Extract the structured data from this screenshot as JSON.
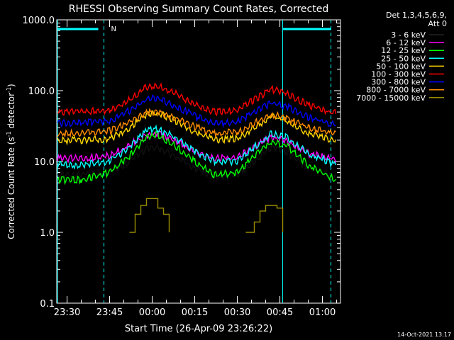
{
  "chart_data": {
    "type": "line",
    "title": "RHESSI Observing Summary Count Rates, Corrected",
    "xlabel": "Start Time (26-Apr-09 23:26:22)",
    "ylabel_main": "Corrected Count Rate (s",
    "ylabel_sup1": "-1",
    "ylabel_mid": " detector",
    "ylabel_sup2": "-1",
    "ylabel_end": ")",
    "yscale": "log",
    "ylim": [
      0.1,
      1000
    ],
    "xlim": [
      "23:26:22",
      "01:06:22"
    ],
    "grid": false,
    "y_ticks": [
      {
        "value": 1000,
        "label": "1000.0"
      },
      {
        "value": 100,
        "label": "100.0"
      },
      {
        "value": 10,
        "label": "10.0"
      },
      {
        "value": 1,
        "label": "1.0"
      },
      {
        "value": 0.1,
        "label": "0.1"
      }
    ],
    "x_ticks": [
      {
        "time": "23:30",
        "label": "23:30"
      },
      {
        "time": "23:45",
        "label": "23:45"
      },
      {
        "time": "00:00",
        "label": "00:00"
      },
      {
        "time": "00:15",
        "label": "00:15"
      },
      {
        "time": "00:30",
        "label": "00:30"
      },
      {
        "time": "00:45",
        "label": "00:45"
      },
      {
        "time": "01:00",
        "label": "01:00"
      }
    ],
    "legend": {
      "position": "top-right",
      "header_line1": "Det 1,3,4,5,6,9,",
      "header_line2": "Att 0"
    },
    "series": [
      {
        "name": "3 - 6 keV",
        "color": "#000000",
        "points": [
          [
            "23:26",
            6.5
          ],
          [
            "23:35",
            6.5
          ],
          [
            "23:45",
            7
          ],
          [
            "23:52",
            10
          ],
          [
            "23:58",
            15
          ],
          [
            "00:02",
            15.5
          ],
          [
            "00:08",
            12
          ],
          [
            "00:15",
            8
          ],
          [
            "00:22",
            6
          ],
          [
            "00:30",
            6.5
          ],
          [
            "00:36",
            10
          ],
          [
            "00:42",
            16
          ],
          [
            "00:47",
            14
          ],
          [
            "00:55",
            8
          ],
          [
            "01:05",
            6
          ]
        ]
      },
      {
        "name": "6 - 12 keV",
        "color": "#ff00ff",
        "points": [
          [
            "23:26",
            11
          ],
          [
            "23:35",
            11
          ],
          [
            "23:45",
            12
          ],
          [
            "23:52",
            17
          ],
          [
            "23:58",
            24
          ],
          [
            "00:02",
            25
          ],
          [
            "00:08",
            20
          ],
          [
            "00:15",
            14
          ],
          [
            "00:22",
            11
          ],
          [
            "00:30",
            11.5
          ],
          [
            "00:36",
            16
          ],
          [
            "00:42",
            22
          ],
          [
            "00:47",
            20
          ],
          [
            "00:55",
            13
          ],
          [
            "01:05",
            10.5
          ]
        ]
      },
      {
        "name": "12 - 25 keV",
        "color": "#00ff00",
        "points": [
          [
            "23:26",
            5.5
          ],
          [
            "23:35",
            5.5
          ],
          [
            "23:45",
            7
          ],
          [
            "23:52",
            12
          ],
          [
            "23:58",
            22
          ],
          [
            "00:02",
            24
          ],
          [
            "00:08",
            17
          ],
          [
            "00:15",
            10
          ],
          [
            "00:22",
            6.5
          ],
          [
            "00:30",
            7
          ],
          [
            "00:36",
            12
          ],
          [
            "00:42",
            19
          ],
          [
            "00:47",
            17
          ],
          [
            "00:55",
            9
          ],
          [
            "01:05",
            5.5
          ]
        ]
      },
      {
        "name": "25 - 50 keV",
        "color": "#00ffff",
        "points": [
          [
            "23:26",
            9
          ],
          [
            "23:35",
            9
          ],
          [
            "23:45",
            10
          ],
          [
            "23:52",
            16
          ],
          [
            "23:58",
            27
          ],
          [
            "00:02",
            29
          ],
          [
            "00:08",
            22
          ],
          [
            "00:15",
            14
          ],
          [
            "00:22",
            10
          ],
          [
            "00:30",
            10
          ],
          [
            "00:36",
            16
          ],
          [
            "00:42",
            25
          ],
          [
            "00:47",
            22
          ],
          [
            "00:55",
            13
          ],
          [
            "01:05",
            9
          ]
        ]
      },
      {
        "name": "50 - 100 keV",
        "color": "#ffd700",
        "points": [
          [
            "23:26",
            20
          ],
          [
            "23:35",
            20
          ],
          [
            "23:45",
            21
          ],
          [
            "23:52",
            30
          ],
          [
            "23:58",
            45
          ],
          [
            "00:02",
            48
          ],
          [
            "00:08",
            38
          ],
          [
            "00:15",
            26
          ],
          [
            "00:22",
            20
          ],
          [
            "00:30",
            21
          ],
          [
            "00:36",
            30
          ],
          [
            "00:42",
            43
          ],
          [
            "00:47",
            38
          ],
          [
            "00:55",
            25
          ],
          [
            "01:05",
            19
          ]
        ]
      },
      {
        "name": "100 - 300 keV",
        "color": "#ff0000",
        "points": [
          [
            "23:26",
            50
          ],
          [
            "23:35",
            50
          ],
          [
            "23:45",
            53
          ],
          [
            "23:52",
            75
          ],
          [
            "23:58",
            112
          ],
          [
            "00:02",
            118
          ],
          [
            "00:08",
            92
          ],
          [
            "00:15",
            65
          ],
          [
            "00:22",
            50
          ],
          [
            "00:30",
            53
          ],
          [
            "00:36",
            75
          ],
          [
            "00:42",
            104
          ],
          [
            "00:47",
            93
          ],
          [
            "00:55",
            62
          ],
          [
            "01:05",
            48
          ]
        ]
      },
      {
        "name": "300 - 800 keV",
        "color": "#0000ff",
        "points": [
          [
            "23:26",
            35
          ],
          [
            "23:35",
            35
          ],
          [
            "23:45",
            37
          ],
          [
            "23:52",
            52
          ],
          [
            "23:58",
            76
          ],
          [
            "00:02",
            78
          ],
          [
            "00:08",
            62
          ],
          [
            "00:15",
            44
          ],
          [
            "00:22",
            34
          ],
          [
            "00:30",
            36
          ],
          [
            "00:36",
            50
          ],
          [
            "00:42",
            68
          ],
          [
            "00:47",
            61
          ],
          [
            "00:55",
            42
          ],
          [
            "01:05",
            33
          ]
        ]
      },
      {
        "name": "800 - 7000 keV",
        "color": "#ff8c00",
        "points": [
          [
            "23:26",
            25
          ],
          [
            "23:35",
            25
          ],
          [
            "23:45",
            27
          ],
          [
            "23:52",
            36
          ],
          [
            "23:58",
            48
          ],
          [
            "00:02",
            50
          ],
          [
            "00:08",
            41
          ],
          [
            "00:15",
            31
          ],
          [
            "00:22",
            25
          ],
          [
            "00:30",
            26
          ],
          [
            "00:36",
            35
          ],
          [
            "00:42",
            46
          ],
          [
            "00:47",
            41
          ],
          [
            "00:55",
            30
          ],
          [
            "01:05",
            24
          ]
        ]
      },
      {
        "name": "7000 - 15000 keV",
        "color": "#9a8c00",
        "points": [
          [
            "23:52",
            1.0
          ],
          [
            "23:54",
            1.8
          ],
          [
            "23:56",
            2.4
          ],
          [
            "23:58",
            3.0
          ],
          [
            "00:00",
            3.0
          ],
          [
            "00:02",
            2.2
          ],
          [
            "00:04",
            1.8
          ],
          [
            "00:06",
            1.0
          ],
          [
            "00:33",
            1.0
          ],
          [
            "00:36",
            1.4
          ],
          [
            "00:38",
            2.0
          ],
          [
            "00:40",
            2.4
          ],
          [
            "00:42",
            2.4
          ],
          [
            "00:44",
            2.2
          ],
          [
            "00:46",
            1.0
          ]
        ]
      }
    ],
    "annotations": [
      {
        "type": "vline",
        "time": "23:26",
        "style": "solid",
        "color": "#00ffff"
      },
      {
        "type": "vline",
        "time": "23:43",
        "style": "dashed",
        "color": "#00ffff"
      },
      {
        "type": "vline",
        "time": "00:46",
        "style": "solid",
        "color": "#00ffff"
      },
      {
        "type": "vline",
        "time": "01:03",
        "style": "dashed",
        "color": "#00ffff"
      },
      {
        "type": "bar_top",
        "from": "23:26",
        "to": "23:41",
        "color": "#00ffff"
      },
      {
        "type": "bar_top",
        "from": "00:46",
        "to": "01:03",
        "color": "#00ffff"
      },
      {
        "type": "text",
        "time": "23:44",
        "label": "N",
        "color": "#00ffff"
      }
    ]
  },
  "footer_timestamp": "14-Oct-2021 13:17"
}
